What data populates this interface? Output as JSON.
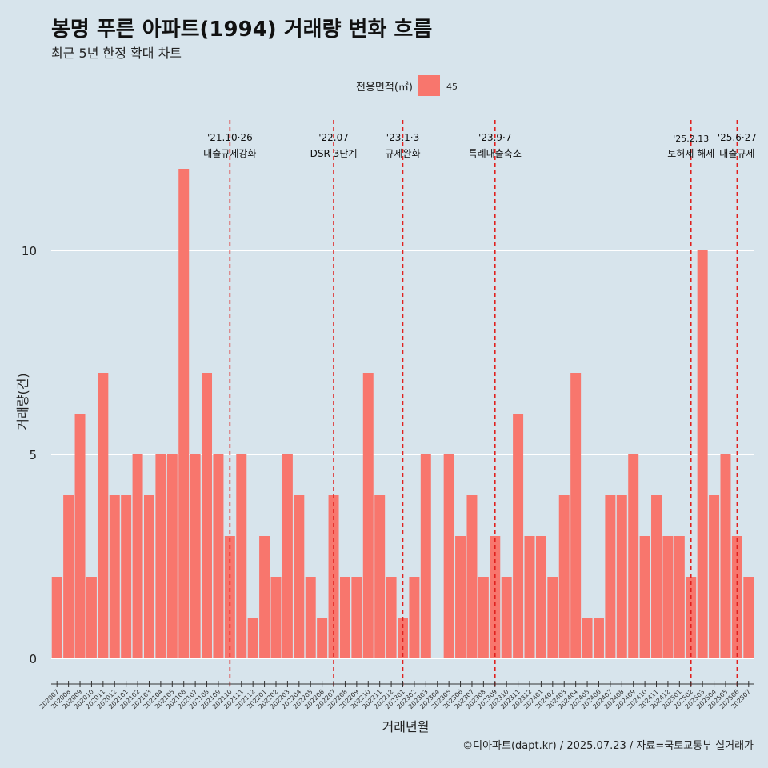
{
  "chart_data": {
    "type": "bar",
    "title": "봉명 푸른 아파트(1994) 거래량 변화 흐름",
    "subtitle": "최근 5년 한정 확대 차트",
    "xlabel": "거래년월",
    "ylabel": "거래량(건)",
    "ylim": [
      0,
      12.5
    ],
    "y_ticks": [
      0,
      5,
      10
    ],
    "grid": true,
    "legend": {
      "title": "전용면적(㎡)",
      "entries": [
        {
          "label": "45",
          "color": "#f8766d"
        }
      ],
      "position": "top"
    },
    "categories": [
      "202007",
      "202008",
      "202009",
      "202010",
      "202011",
      "202012",
      "202101",
      "202102",
      "202103",
      "202104",
      "202105",
      "202106",
      "202107",
      "202108",
      "202109",
      "202110",
      "202111",
      "202112",
      "202201",
      "202202",
      "202203",
      "202204",
      "202205",
      "202206",
      "202207",
      "202208",
      "202209",
      "202210",
      "202211",
      "202212",
      "202301",
      "202302",
      "202303",
      "202304",
      "202305",
      "202306",
      "202307",
      "202308",
      "202309",
      "202310",
      "202311",
      "202312",
      "202401",
      "202402",
      "202403",
      "202404",
      "202405",
      "202406",
      "202407",
      "202408",
      "202409",
      "202410",
      "202411",
      "202412",
      "202501",
      "202502",
      "202503",
      "202504",
      "202505",
      "202506",
      "202507"
    ],
    "series": [
      {
        "color": "#f8766d",
        "values": [
          2,
          4,
          6,
          2,
          7,
          4,
          4,
          5,
          4,
          5,
          5,
          12,
          5,
          7,
          5,
          3,
          5,
          1,
          3,
          2,
          5,
          4,
          2,
          1,
          4,
          2,
          2,
          7,
          4,
          2,
          1,
          2,
          5,
          0,
          5,
          3,
          4,
          2,
          3,
          2,
          6,
          3,
          3,
          2,
          4,
          7,
          1,
          1,
          4,
          4,
          5,
          3,
          4,
          3,
          3,
          2,
          10,
          4,
          5,
          3,
          2
        ]
      }
    ],
    "annotations": [
      {
        "category": "202110",
        "date": "'21.10·26",
        "label": "대출규제강화"
      },
      {
        "category": "202207",
        "date": "'22.07",
        "label": "DSR 3단계"
      },
      {
        "category": "202301",
        "date": "'23.1·3",
        "label": "규제완화"
      },
      {
        "category": "202309",
        "date": "'23.9·7",
        "label": "특례대출축소"
      },
      {
        "category": "202502",
        "date": "'25.2.13",
        "label": "토허제 해제"
      },
      {
        "category": "202506",
        "date": "'25.6·27",
        "label": "대출규제"
      }
    ],
    "caption": "©디아파트(dapt.kr) / 2025.07.23 / 자료=국토교통부 실거래가"
  },
  "colors": {
    "background": "#d7e4ec",
    "bar": "#f8766d",
    "grid": "#ffffff",
    "annotation_line": "#e0201e"
  }
}
